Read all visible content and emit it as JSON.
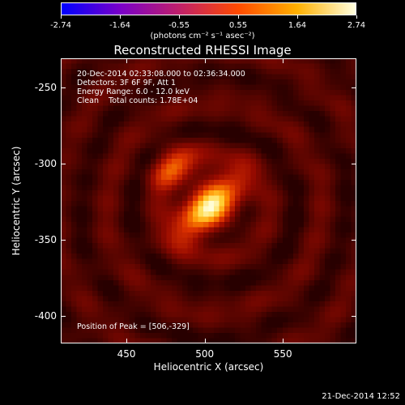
{
  "colorbar": {
    "ticks": [
      "-2.74",
      "-1.64",
      "-0.55",
      "0.55",
      "1.64",
      "2.74"
    ],
    "unit_label": "(photons cm⁻² s⁻¹ asec⁻²)",
    "colormap": [
      "#0000ff",
      "#7a00c8",
      "#c0206a",
      "#ff4a00",
      "#ffb000",
      "#ffffe0"
    ]
  },
  "title": "Reconstructed RHESSI Image",
  "info_lines": [
    "20-Dec-2014 02:33:08.000 to 02:36:34.000",
    "Detectors: 3F 6F 9F, Att 1",
    "Energy Range: 6.0 - 12.0 keV",
    "Clean    Total counts: 1.78E+04"
  ],
  "peak_label": "Position of Peak = [506,-329]",
  "axes": {
    "xlabel": "Heliocentric X (arcsec)",
    "ylabel": "Heliocentric Y (arcsec)",
    "xticks": [
      "450",
      "500",
      "550"
    ],
    "yticks": [
      "-250",
      "-300",
      "-350",
      "-400"
    ],
    "xlim": [
      408,
      597
    ],
    "ylim": [
      -418,
      -231
    ]
  },
  "chart_data": {
    "type": "heatmap",
    "title": "Reconstructed RHESSI Image",
    "xlabel": "Heliocentric X (arcsec)",
    "ylabel": "Heliocentric Y (arcsec)",
    "xlim": [
      408,
      597
    ],
    "ylim": [
      -418,
      -231
    ],
    "zlim": [
      -2.74,
      2.74
    ],
    "peak": [
      506,
      -329
    ],
    "sources": [
      {
        "x": 503,
        "y": -328,
        "amplitude": 2.74
      },
      {
        "x": 480,
        "y": -302,
        "amplitude": 1.4
      }
    ]
  },
  "timestamp": "21-Dec-2014 12:52"
}
